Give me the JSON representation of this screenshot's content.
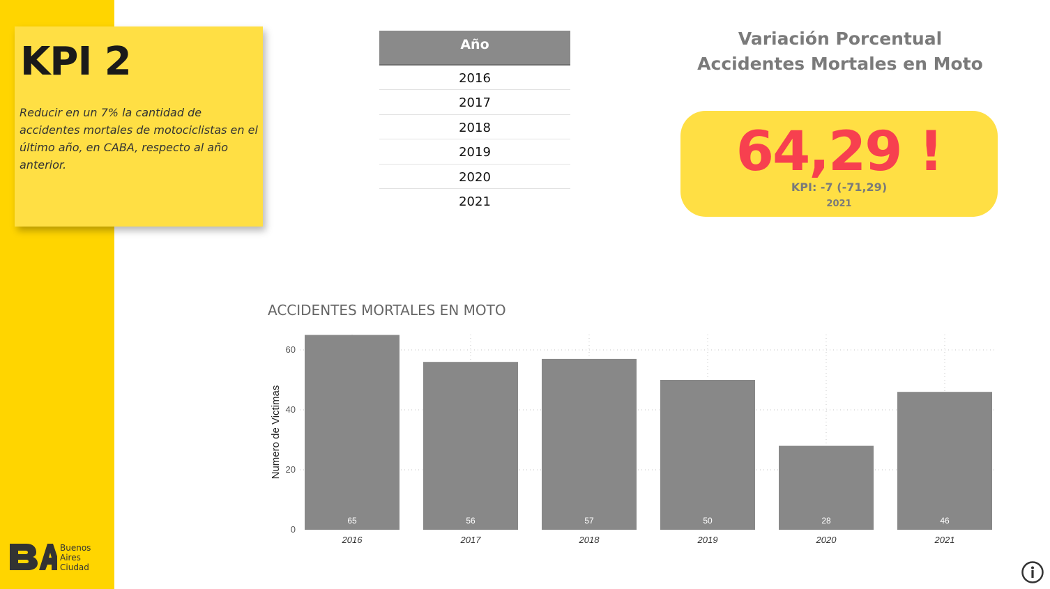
{
  "kpi": {
    "title": "KPI 2",
    "description": "Reducir en un 7% la cantidad de accidentes mortales de motociclistas en el último año, en CABA, respecto al año anterior."
  },
  "logo": {
    "line1": "Buenos",
    "line2": "Aires",
    "line3": "Ciudad"
  },
  "year_filter": {
    "header": "Año",
    "years": [
      "2016",
      "2017",
      "2018",
      "2019",
      "2020",
      "2021"
    ]
  },
  "variation_card": {
    "title": "Variación Porcentual Accidentes Mortales en Moto",
    "value": "64,29 !",
    "kpi_text": "KPI: -7 (-71,29)",
    "year": "2021"
  },
  "colors": {
    "sidebar": "#FFD500",
    "card": "#FFDF44",
    "bar": "#888888",
    "alert": "#F7404F"
  },
  "icons": {
    "info": "info-icon",
    "logo": "ba-logo-icon"
  },
  "chart_data": {
    "type": "bar",
    "title": "ACCIDENTES MORTALES EN MOTO",
    "xlabel": "",
    "ylabel": "Numero de Victimas",
    "categories": [
      "2016",
      "2017",
      "2018",
      "2019",
      "2020",
      "2021"
    ],
    "values": [
      65,
      56,
      57,
      50,
      28,
      46
    ],
    "yticks": [
      0,
      20,
      40,
      60
    ],
    "ylim": [
      0,
      65
    ],
    "grid": true,
    "data_labels": true
  }
}
